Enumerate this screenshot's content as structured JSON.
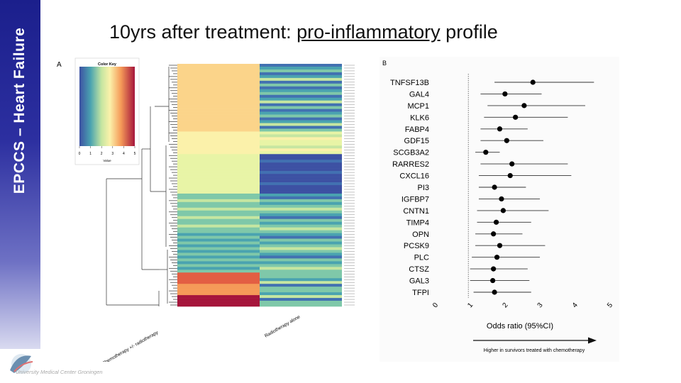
{
  "sidebar": {
    "text": "EPCCS – Heart Failure"
  },
  "title": {
    "before": "10yrs after treatment: ",
    "underlined": "pro-inflammatory",
    "after": " profile"
  },
  "footer": {
    "institution": "University Medical Center Groningen"
  },
  "panel_a": {
    "label": "A",
    "color_key": {
      "title": "Color Key",
      "ticks": [
        "0",
        "1",
        "2",
        "3",
        "4",
        "5"
      ],
      "xlabel": "Value"
    },
    "columns": [
      "Chemotherapy +/- radiotherapy",
      "Radiotherapy alone"
    ]
  },
  "chart_data": {
    "type": "scatter",
    "subtype": "forest-plot",
    "panel_label": "B",
    "categories": [
      "TNFSF13B",
      "GAL4",
      "MCP1",
      "KLK6",
      "FABP4",
      "GDF15",
      "SCGB3A2",
      "RARRES2",
      "CXCL16",
      "PI3",
      "IGFBP7",
      "CNTN1",
      "TIMP4",
      "OPN",
      "PCSK9",
      "PLC",
      "CTSZ",
      "GAL3",
      "TFPI"
    ],
    "estimate": [
      2.85,
      2.05,
      2.6,
      2.35,
      1.9,
      2.1,
      1.5,
      2.25,
      2.2,
      1.75,
      1.95,
      2.0,
      1.8,
      1.72,
      1.9,
      1.82,
      1.72,
      1.7,
      1.75
    ],
    "ci_low": [
      1.75,
      1.35,
      1.55,
      1.45,
      1.35,
      1.35,
      1.2,
      1.35,
      1.3,
      1.3,
      1.3,
      1.25,
      1.25,
      1.2,
      1.2,
      1.1,
      1.05,
      1.05,
      1.15
    ],
    "ci_high": [
      4.6,
      3.1,
      4.35,
      3.85,
      2.7,
      3.15,
      1.9,
      3.85,
      3.95,
      2.65,
      3.05,
      3.3,
      2.8,
      2.55,
      3.2,
      3.05,
      2.7,
      2.75,
      2.8
    ],
    "xlim": [
      0,
      5
    ],
    "xticks": [
      "0",
      "1",
      "2",
      "3",
      "4",
      "5"
    ],
    "reference_line": 1,
    "xlabel": "Odds ratio (95%CI)",
    "annotation": "Higher in survivors treated with chemotherapy"
  }
}
